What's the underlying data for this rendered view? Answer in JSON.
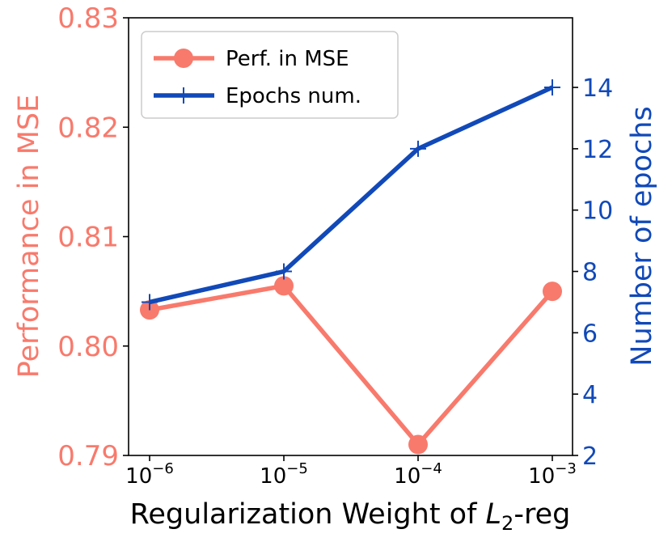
{
  "chart_data": {
    "type": "line",
    "xscale": "log",
    "x": [
      1e-06,
      1e-05,
      0.0001,
      0.001
    ],
    "x_tick_labels": [
      {
        "base": "10",
        "exp": "−6"
      },
      {
        "base": "10",
        "exp": "−5"
      },
      {
        "base": "10",
        "exp": "−4"
      },
      {
        "base": "10",
        "exp": "−3"
      }
    ],
    "xlabel": {
      "pre": "Regularization Weight of ",
      "var": "L",
      "sub": "2",
      "post": "-reg"
    },
    "series": [
      {
        "name": "Perf. in MSE",
        "axis": "left",
        "color": "#f87a6c",
        "marker": "circle",
        "values": [
          0.8033,
          0.8055,
          0.791,
          0.805
        ]
      },
      {
        "name": "Epochs num.",
        "axis": "right",
        "color": "#1149b8",
        "marker": "plus",
        "values": [
          7,
          8,
          12,
          14
        ]
      }
    ],
    "y_left": {
      "label": "Performance in MSE",
      "ylim": [
        0.79,
        0.83
      ],
      "ticks": [
        0.79,
        0.8,
        0.81,
        0.82,
        0.83
      ],
      "tick_labels": [
        "0.79",
        "0.80",
        "0.81",
        "0.82",
        "0.83"
      ],
      "color": "#f87a6c"
    },
    "y_right": {
      "label": "Number of epochs",
      "ylim": [
        2,
        16.27
      ],
      "ticks": [
        2,
        4,
        6,
        8,
        10,
        12,
        14
      ],
      "tick_labels": [
        "2",
        "4",
        "6",
        "8",
        "10",
        "12",
        "14"
      ],
      "color": "#1149b8"
    },
    "legend": {
      "placement": "top-left"
    },
    "grid": false
  }
}
